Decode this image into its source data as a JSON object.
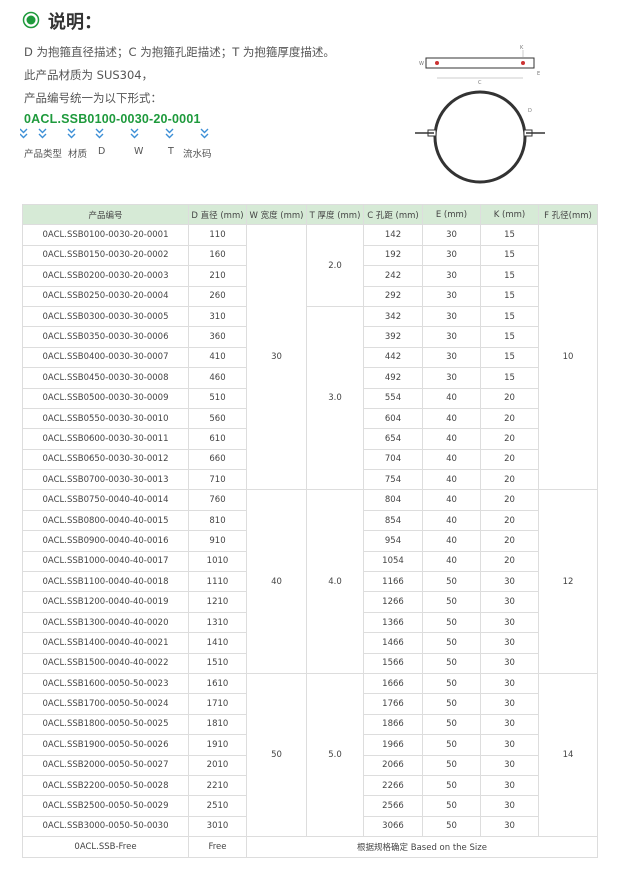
{
  "header": {
    "title": "说明："
  },
  "description": {
    "lines": [
      "D 为抱箍直径描述；C 为抱箍孔距描述；T 为抱箍厚度描述。",
      "此产品材质为 SUS304，",
      "产品编号统一为以下形式："
    ],
    "code": "0ACL.SSB0100-0030-20-0001",
    "parts": [
      "产品类型",
      "材质",
      "D",
      "W",
      "T",
      "流水码"
    ]
  },
  "diagram": {
    "labels": [
      "W",
      "C",
      "E",
      "K",
      "D"
    ]
  },
  "table": {
    "headers": [
      "产品编号",
      "D 直径 (mm)",
      "W 宽度 (mm)",
      "T 厚度 (mm)",
      "C 孔距 (mm)",
      "E (mm)",
      "K (mm)",
      "F 孔径(mm)"
    ],
    "sections": [
      {
        "w": "30",
        "f": "10",
        "t_parts": [
          {
            "t": "2.0",
            "rows": [
              [
                "0ACL.SSB0100-0030-20-0001",
                "110",
                "142",
                "30",
                "15"
              ],
              [
                "0ACL.SSB0150-0030-20-0002",
                "160",
                "192",
                "30",
                "15"
              ],
              [
                "0ACL.SSB0200-0030-20-0003",
                "210",
                "242",
                "30",
                "15"
              ],
              [
                "0ACL.SSB0250-0030-20-0004",
                "260",
                "292",
                "30",
                "15"
              ]
            ]
          },
          {
            "t": "3.0",
            "rows": [
              [
                "0ACL.SSB0300-0030-30-0005",
                "310",
                "342",
                "30",
                "15"
              ],
              [
                "0ACL.SSB0350-0030-30-0006",
                "360",
                "392",
                "30",
                "15"
              ],
              [
                "0ACL.SSB0400-0030-30-0007",
                "410",
                "442",
                "30",
                "15"
              ],
              [
                "0ACL.SSB0450-0030-30-0008",
                "460",
                "492",
                "30",
                "15"
              ],
              [
                "0ACL.SSB0500-0030-30-0009",
                "510",
                "554",
                "40",
                "20"
              ],
              [
                "0ACL.SSB0550-0030-30-0010",
                "560",
                "604",
                "40",
                "20"
              ],
              [
                "0ACL.SSB0600-0030-30-0011",
                "610",
                "654",
                "40",
                "20"
              ],
              [
                "0ACL.SSB0650-0030-30-0012",
                "660",
                "704",
                "40",
                "20"
              ],
              [
                "0ACL.SSB0700-0030-30-0013",
                "710",
                "754",
                "40",
                "20"
              ]
            ]
          }
        ]
      },
      {
        "w": "40",
        "f": "12",
        "t_parts": [
          {
            "t": "4.0",
            "rows": [
              [
                "0ACL.SSB0750-0040-40-0014",
                "760",
                "804",
                "40",
                "20"
              ],
              [
                "0ACL.SSB0800-0040-40-0015",
                "810",
                "854",
                "40",
                "20"
              ],
              [
                "0ACL.SSB0900-0040-40-0016",
                "910",
                "954",
                "40",
                "20"
              ],
              [
                "0ACL.SSB1000-0040-40-0017",
                "1010",
                "1054",
                "40",
                "20"
              ],
              [
                "0ACL.SSB1100-0040-40-0018",
                "1110",
                "1166",
                "50",
                "30"
              ],
              [
                "0ACL.SSB1200-0040-40-0019",
                "1210",
                "1266",
                "50",
                "30"
              ],
              [
                "0ACL.SSB1300-0040-40-0020",
                "1310",
                "1366",
                "50",
                "30"
              ],
              [
                "0ACL.SSB1400-0040-40-0021",
                "1410",
                "1466",
                "50",
                "30"
              ],
              [
                "0ACL.SSB1500-0040-40-0022",
                "1510",
                "1566",
                "50",
                "30"
              ]
            ]
          }
        ]
      },
      {
        "w": "50",
        "f": "14",
        "t_parts": [
          {
            "t": "5.0",
            "rows": [
              [
                "0ACL.SSB1600-0050-50-0023",
                "1610",
                "1666",
                "50",
                "30"
              ],
              [
                "0ACL.SSB1700-0050-50-0024",
                "1710",
                "1766",
                "50",
                "30"
              ],
              [
                "0ACL.SSB1800-0050-50-0025",
                "1810",
                "1866",
                "50",
                "30"
              ],
              [
                "0ACL.SSB1900-0050-50-0026",
                "1910",
                "1966",
                "50",
                "30"
              ],
              [
                "0ACL.SSB2000-0050-50-0027",
                "2010",
                "2066",
                "50",
                "30"
              ],
              [
                "0ACL.SSB2200-0050-50-0028",
                "2210",
                "2266",
                "50",
                "30"
              ],
              [
                "0ACL.SSB2500-0050-50-0029",
                "2510",
                "2566",
                "50",
                "30"
              ],
              [
                "0ACL.SSB3000-0050-50-0030",
                "3010",
                "3066",
                "50",
                "30"
              ]
            ]
          }
        ]
      }
    ],
    "footer": [
      "0ACL.SSB-Free",
      "Free",
      "根据规格确定 Based on the Size"
    ]
  }
}
